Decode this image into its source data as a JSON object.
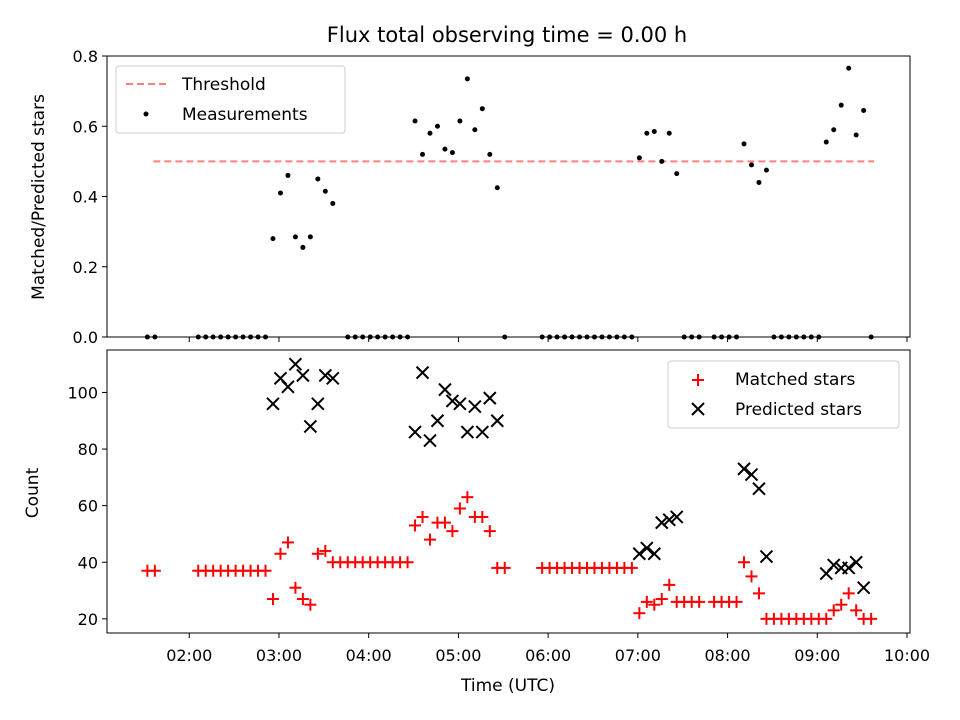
{
  "chart_data": [
    {
      "type": "scatter",
      "title": "Flux total observing time = 0.00 h",
      "xlabel": "",
      "ylabel": "Matched/Predicted stars",
      "ylim": [
        0,
        0.8
      ],
      "xlim": [
        "01:05",
        "10:02"
      ],
      "yticks": [
        "0.0",
        "0.2",
        "0.4",
        "0.6",
        "0.8"
      ],
      "grid": false,
      "legend_position": "top-left",
      "threshold": {
        "name": "Threshold",
        "color": "#ff7f7f",
        "y": 0.5,
        "x_range": [
          "01:36",
          "09:38"
        ]
      },
      "series": [
        {
          "name": "Measurements",
          "color": "#000000",
          "marker": "dot",
          "points": [
            [
              "01:32",
              0
            ],
            [
              "01:37",
              0
            ],
            [
              "02:06",
              0
            ],
            [
              "02:11",
              0
            ],
            [
              "02:16",
              0
            ],
            [
              "02:21",
              0
            ],
            [
              "02:26",
              0
            ],
            [
              "02:31",
              0
            ],
            [
              "02:36",
              0
            ],
            [
              "02:41",
              0
            ],
            [
              "02:46",
              0
            ],
            [
              "02:51",
              0
            ],
            [
              "02:56",
              0.28
            ],
            [
              "03:01",
              0.41
            ],
            [
              "03:06",
              0.46
            ],
            [
              "03:11",
              0.285
            ],
            [
              "03:16",
              0.255
            ],
            [
              "03:21",
              0.285
            ],
            [
              "03:26",
              0.45
            ],
            [
              "03:31",
              0.415
            ],
            [
              "03:36",
              0.38
            ],
            [
              "03:46",
              0
            ],
            [
              "03:51",
              0
            ],
            [
              "03:56",
              0
            ],
            [
              "04:01",
              0
            ],
            [
              "04:06",
              0
            ],
            [
              "04:11",
              0
            ],
            [
              "04:16",
              0
            ],
            [
              "04:21",
              0
            ],
            [
              "04:26",
              0
            ],
            [
              "04:31",
              0.615
            ],
            [
              "04:36",
              0.52
            ],
            [
              "04:41",
              0.58
            ],
            [
              "04:46",
              0.6
            ],
            [
              "04:51",
              0.535
            ],
            [
              "04:56",
              0.525
            ],
            [
              "05:01",
              0.615
            ],
            [
              "05:06",
              0.735
            ],
            [
              "05:11",
              0.59
            ],
            [
              "05:16",
              0.65
            ],
            [
              "05:21",
              0.52
            ],
            [
              "05:26",
              0.425
            ],
            [
              "05:31",
              0
            ],
            [
              "05:56",
              0
            ],
            [
              "06:01",
              0
            ],
            [
              "06:06",
              0
            ],
            [
              "06:11",
              0
            ],
            [
              "06:16",
              0
            ],
            [
              "06:21",
              0
            ],
            [
              "06:26",
              0
            ],
            [
              "06:31",
              0
            ],
            [
              "06:36",
              0
            ],
            [
              "06:41",
              0
            ],
            [
              "06:46",
              0
            ],
            [
              "06:51",
              0
            ],
            [
              "06:56",
              0
            ],
            [
              "07:01",
              0.51
            ],
            [
              "07:06",
              0.58
            ],
            [
              "07:11",
              0.585
            ],
            [
              "07:16",
              0.5
            ],
            [
              "07:21",
              0.58
            ],
            [
              "07:26",
              0.465
            ],
            [
              "07:31",
              0
            ],
            [
              "07:36",
              0
            ],
            [
              "07:41",
              0
            ],
            [
              "07:51",
              0
            ],
            [
              "07:56",
              0
            ],
            [
              "08:01",
              0
            ],
            [
              "08:06",
              0
            ],
            [
              "08:11",
              0.55
            ],
            [
              "08:16",
              0.49
            ],
            [
              "08:21",
              0.44
            ],
            [
              "08:26",
              0.475
            ],
            [
              "08:31",
              0
            ],
            [
              "08:36",
              0
            ],
            [
              "08:41",
              0
            ],
            [
              "08:46",
              0
            ],
            [
              "08:51",
              0
            ],
            [
              "08:56",
              0
            ],
            [
              "09:01",
              0
            ],
            [
              "09:06",
              0.555
            ],
            [
              "09:11",
              0.59
            ],
            [
              "09:16",
              0.66
            ],
            [
              "09:21",
              0.765
            ],
            [
              "09:26",
              0.575
            ],
            [
              "09:31",
              0.645
            ],
            [
              "09:36",
              0
            ]
          ]
        }
      ]
    },
    {
      "type": "scatter",
      "title": "",
      "xlabel": "Time (UTC)",
      "ylabel": "Count",
      "ylim": [
        15,
        115
      ],
      "xlim": [
        "01:05",
        "10:02"
      ],
      "xticks": [
        "02:00",
        "03:00",
        "04:00",
        "05:00",
        "06:00",
        "07:00",
        "08:00",
        "09:00",
        "10:00"
      ],
      "yticks": [
        "20",
        "40",
        "60",
        "80",
        "100"
      ],
      "grid": false,
      "legend_position": "top-right",
      "series": [
        {
          "name": "Matched stars",
          "color": "#ff0000",
          "marker": "plus",
          "points": [
            [
              "01:32",
              37
            ],
            [
              "01:37",
              37
            ],
            [
              "02:06",
              37
            ],
            [
              "02:11",
              37
            ],
            [
              "02:16",
              37
            ],
            [
              "02:21",
              37
            ],
            [
              "02:26",
              37
            ],
            [
              "02:31",
              37
            ],
            [
              "02:36",
              37
            ],
            [
              "02:41",
              37
            ],
            [
              "02:46",
              37
            ],
            [
              "02:51",
              37
            ],
            [
              "02:56",
              27
            ],
            [
              "03:01",
              43
            ],
            [
              "03:06",
              47
            ],
            [
              "03:11",
              31
            ],
            [
              "03:16",
              27
            ],
            [
              "03:21",
              25
            ],
            [
              "03:26",
              43
            ],
            [
              "03:31",
              44
            ],
            [
              "03:36",
              40
            ],
            [
              "03:41",
              40
            ],
            [
              "03:46",
              40
            ],
            [
              "03:51",
              40
            ],
            [
              "03:56",
              40
            ],
            [
              "04:01",
              40
            ],
            [
              "04:06",
              40
            ],
            [
              "04:11",
              40
            ],
            [
              "04:16",
              40
            ],
            [
              "04:21",
              40
            ],
            [
              "04:26",
              40
            ],
            [
              "04:31",
              53
            ],
            [
              "04:36",
              56
            ],
            [
              "04:41",
              48
            ],
            [
              "04:46",
              54
            ],
            [
              "04:51",
              54
            ],
            [
              "04:56",
              51
            ],
            [
              "05:01",
              59
            ],
            [
              "05:06",
              63
            ],
            [
              "05:11",
              56
            ],
            [
              "05:16",
              56
            ],
            [
              "05:21",
              51
            ],
            [
              "05:26",
              38
            ],
            [
              "05:31",
              38
            ],
            [
              "05:56",
              38
            ],
            [
              "06:01",
              38
            ],
            [
              "06:06",
              38
            ],
            [
              "06:11",
              38
            ],
            [
              "06:16",
              38
            ],
            [
              "06:21",
              38
            ],
            [
              "06:26",
              38
            ],
            [
              "06:31",
              38
            ],
            [
              "06:36",
              38
            ],
            [
              "06:41",
              38
            ],
            [
              "06:46",
              38
            ],
            [
              "06:51",
              38
            ],
            [
              "06:56",
              38
            ],
            [
              "07:01",
              22
            ],
            [
              "07:06",
              26
            ],
            [
              "07:11",
              25
            ],
            [
              "07:16",
              27
            ],
            [
              "07:21",
              32
            ],
            [
              "07:26",
              26
            ],
            [
              "07:31",
              26
            ],
            [
              "07:36",
              26
            ],
            [
              "07:41",
              26
            ],
            [
              "07:51",
              26
            ],
            [
              "07:56",
              26
            ],
            [
              "08:01",
              26
            ],
            [
              "08:06",
              26
            ],
            [
              "08:11",
              40
            ],
            [
              "08:16",
              35
            ],
            [
              "08:21",
              29
            ],
            [
              "08:26",
              20
            ],
            [
              "08:31",
              20
            ],
            [
              "08:36",
              20
            ],
            [
              "08:41",
              20
            ],
            [
              "08:46",
              20
            ],
            [
              "08:51",
              20
            ],
            [
              "08:56",
              20
            ],
            [
              "09:01",
              20
            ],
            [
              "09:06",
              20
            ],
            [
              "09:11",
              23
            ],
            [
              "09:16",
              25
            ],
            [
              "09:21",
              29
            ],
            [
              "09:26",
              23
            ],
            [
              "09:31",
              20
            ],
            [
              "09:36",
              20
            ]
          ]
        },
        {
          "name": "Predicted stars",
          "color": "#000000",
          "marker": "x",
          "points": [
            [
              "02:56",
              96
            ],
            [
              "03:01",
              105
            ],
            [
              "03:06",
              102
            ],
            [
              "03:11",
              110
            ],
            [
              "03:16",
              106
            ],
            [
              "03:21",
              88
            ],
            [
              "03:26",
              96
            ],
            [
              "03:31",
              106
            ],
            [
              "03:36",
              105
            ],
            [
              "04:31",
              86
            ],
            [
              "04:36",
              107
            ],
            [
              "04:41",
              83
            ],
            [
              "04:46",
              90
            ],
            [
              "04:51",
              101
            ],
            [
              "04:56",
              97
            ],
            [
              "05:01",
              96
            ],
            [
              "05:06",
              86
            ],
            [
              "05:11",
              95
            ],
            [
              "05:16",
              86
            ],
            [
              "05:21",
              98
            ],
            [
              "05:26",
              90
            ],
            [
              "07:01",
              43
            ],
            [
              "07:06",
              45
            ],
            [
              "07:11",
              43
            ],
            [
              "07:16",
              54
            ],
            [
              "07:21",
              55
            ],
            [
              "07:26",
              56
            ],
            [
              "08:11",
              73
            ],
            [
              "08:16",
              71
            ],
            [
              "08:21",
              66
            ],
            [
              "08:26",
              42
            ],
            [
              "09:06",
              36
            ],
            [
              "09:11",
              39
            ],
            [
              "09:16",
              38
            ],
            [
              "09:21",
              38
            ],
            [
              "09:26",
              40
            ],
            [
              "09:31",
              31
            ]
          ]
        }
      ]
    }
  ]
}
